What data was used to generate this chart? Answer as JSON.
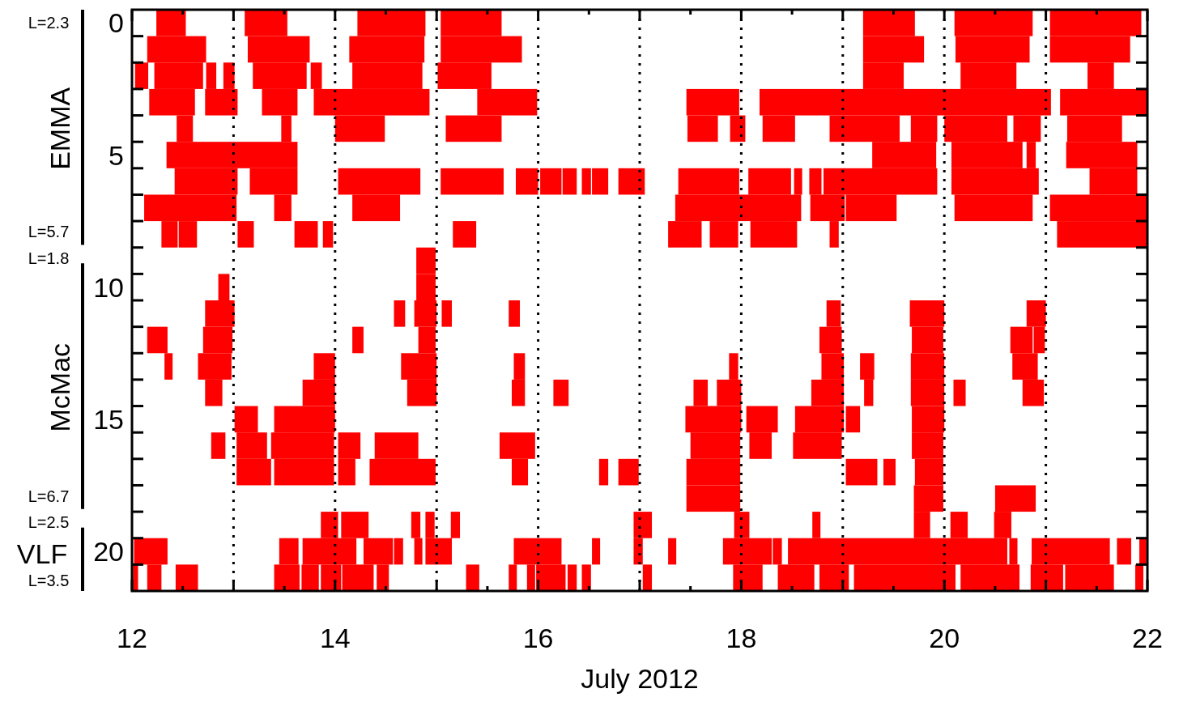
{
  "chart_data": {
    "type": "bar",
    "orientation": "horizontal",
    "xlabel": "July 2012",
    "categories": [
      "0",
      null,
      null,
      null,
      null,
      "5",
      null,
      null,
      null,
      null,
      "10",
      null,
      null,
      null,
      null,
      "15",
      null,
      null,
      null,
      null,
      "20",
      null
    ],
    "xlim": [
      12,
      22
    ],
    "xticks": [
      12,
      {
        "value": 12.5,
        "label": null
      },
      {
        "value": 13,
        "label": null
      },
      {
        "value": 13.5,
        "label": null
      },
      14,
      {
        "value": 14.5,
        "label": null
      },
      {
        "value": 15,
        "label": null
      },
      {
        "value": 15.5,
        "label": null
      },
      16,
      {
        "value": 16.5,
        "label": null
      },
      {
        "value": 17,
        "label": null
      },
      {
        "value": 17.5,
        "label": null
      },
      18,
      {
        "value": 18.5,
        "label": null
      },
      {
        "value": 19,
        "label": null
      },
      {
        "value": 19.5,
        "label": null
      },
      20,
      {
        "value": 20.5,
        "label": null
      },
      {
        "value": 21,
        "label": null
      },
      {
        "value": 21.5,
        "label": null
      },
      22
    ],
    "ref_lines": [
      {
        "axis": "x",
        "value": 13,
        "line_style": "dotted",
        "color": "#000000"
      },
      {
        "axis": "x",
        "value": 14,
        "line_style": "dotted",
        "color": "#000000"
      },
      {
        "axis": "x",
        "value": 15,
        "line_style": "dotted",
        "color": "#000000"
      },
      {
        "axis": "x",
        "value": 16,
        "line_style": "dotted",
        "color": "#000000"
      },
      {
        "axis": "x",
        "value": 17,
        "line_style": "dotted",
        "color": "#000000"
      },
      {
        "axis": "x",
        "value": 18,
        "line_style": "dotted",
        "color": "#000000"
      },
      {
        "axis": "x",
        "value": 19,
        "line_style": "dotted",
        "color": "#000000"
      },
      {
        "axis": "x",
        "value": 20,
        "line_style": "dotted",
        "color": "#000000"
      },
      {
        "axis": "x",
        "value": 21,
        "line_style": "dotted",
        "color": "#000000"
      }
    ],
    "annotations": [
      "L=2.3",
      "EMMA",
      "L=5.7",
      "L=1.8",
      "McMac",
      "L=6.7",
      "L=2.5",
      "VLF",
      "L=3.5"
    ],
    "series": [
      {
        "color": "#ff0000",
        "base": [
          12.24,
          12.15,
          12.03,
          12.17,
          12.44,
          12.34,
          12.42,
          12.12,
          12.29,
          14.8,
          12.85,
          12.72,
          12.15,
          12.32,
          12.72,
          13.01,
          12.78,
          13.03,
          17.46,
          13.86,
          12.02,
          12.01
        ],
        "values": [
          0.29,
          0.58,
          0.13,
          0.45,
          0.16,
          1.29,
          0.62,
          0.91,
          0.16,
          0.19,
          0.11,
          0.29,
          0.2,
          0.08,
          0.17,
          0.23,
          0.14,
          0.34,
          0.53,
          0.17,
          0.33,
          0.05
        ]
      },
      {
        "color": "#ff0000",
        "base": [
          13.11,
          13.14,
          12.22,
          12.72,
          13.47,
          19.29,
          13.16,
          13.4,
          12.46,
          null,
          14.8,
          14.58,
          12.7,
          12.65,
          13.68,
          13.4,
          13.03,
          13.4,
          19.7,
          14.06,
          13.45,
          12.15
        ],
        "values": [
          0.42,
          0.61,
          0.48,
          0.32,
          0.1,
          0.63,
          0.47,
          0.17,
          0.18,
          null,
          0.19,
          0.11,
          0.29,
          0.33,
          0.32,
          0.6,
          0.3,
          0.59,
          0.29,
          0.27,
          0.19,
          0.14
        ]
      },
      {
        "color": "#ff0000",
        "base": [
          14.22,
          14.14,
          12.73,
          13.28,
          14.0,
          20.07,
          14.03,
          14.17,
          13.04,
          null,
          null,
          14.78,
          14.17,
          13.79,
          14.71,
          17.45,
          13.37,
          14.03,
          20.5,
          14.75,
          13.68,
          12.43
        ],
        "values": [
          0.67,
          0.74,
          0.1,
          0.35,
          0.49,
          0.7,
          0.81,
          0.47,
          0.16,
          null,
          null,
          0.22,
          0.11,
          0.21,
          0.29,
          0.55,
          0.62,
          0.17,
          0.4,
          0.09,
          0.53,
          0.22
        ]
      },
      {
        "color": "#ff0000",
        "base": [
          15.04,
          15.04,
          12.9,
          13.79,
          15.09,
          20.81,
          15.04,
          17.35,
          13.6,
          null,
          null,
          15.05,
          14.82,
          14.65,
          15.74,
          18.05,
          14.03,
          14.34,
          null,
          14.89,
          14.28,
          13.4
        ],
        "values": [
          0.6,
          0.8,
          0.11,
          1.14,
          0.55,
          0.09,
          0.62,
          1.24,
          0.23,
          null,
          null,
          0.1,
          0.17,
          0.35,
          0.13,
          0.31,
          0.22,
          0.65,
          null,
          0.09,
          0.29,
          0.25
        ]
      },
      {
        "color": "#ff0000",
        "base": [
          19.2,
          19.2,
          13.19,
          15.4,
          17.47,
          21.2,
          15.78,
          18.68,
          13.88,
          null,
          null,
          15.71,
          18.77,
          15.76,
          16.15,
          18.53,
          14.39,
          15.74,
          null,
          15.14,
          14.58,
          13.67
        ],
        "values": [
          0.51,
          0.6,
          0.53,
          0.59,
          0.3,
          0.7,
          0.22,
          0.34,
          0.1,
          null,
          null,
          0.11,
          0.22,
          0.11,
          0.15,
          0.48,
          0.43,
          0.16,
          null,
          0.09,
          0.09,
          0.17
        ]
      },
      {
        "color": "#ff0000",
        "base": [
          20.1,
          20.11,
          13.76,
          17.46,
          17.89,
          null,
          16.02,
          19.03,
          15.16,
          null,
          null,
          18.84,
          19.68,
          17.88,
          17.53,
          19.03,
          15.62,
          16.6,
          null,
          16.94,
          14.78,
          13.86
        ],
        "values": [
          0.77,
          0.73,
          0.11,
          0.52,
          0.15,
          null,
          0.21,
          0.5,
          0.23,
          null,
          null,
          0.14,
          0.31,
          0.09,
          0.14,
          0.14,
          0.35,
          0.09,
          null,
          0.18,
          0.08,
          0.2
        ]
      },
      {
        "color": "#ff0000",
        "base": [
          21.04,
          21.04,
          14.17,
          18.18,
          18.21,
          null,
          16.24,
          20.1,
          17.28,
          null,
          null,
          19.66,
          20.65,
          18.79,
          17.76,
          19.68,
          17.5,
          16.79,
          null,
          17.93,
          14.89,
          14.07
        ],
        "values": [
          0.9,
          0.79,
          0.69,
          2.87,
          0.32,
          null,
          0.14,
          0.77,
          0.33,
          null,
          null,
          0.34,
          0.22,
          0.22,
          0.24,
          0.32,
          0.49,
          0.2,
          null,
          0.15,
          0.26,
          0.31
        ]
      },
      {
        "color": "#ff0000",
        "base": [
          null,
          null,
          15.01,
          21.14,
          18.87,
          null,
          16.43,
          21.04,
          17.69,
          null,
          null,
          20.81,
          20.88,
          19.17,
          18.69,
          null,
          18.08,
          17.46,
          null,
          18.7,
          15.76,
          14.41
        ],
        "values": [
          null,
          null,
          0.53,
          0.86,
          0.69,
          null,
          0.09,
          0.96,
          0.28,
          null,
          null,
          0.19,
          0.11,
          0.14,
          0.32,
          null,
          0.22,
          0.53,
          null,
          0.08,
          0.47,
          0.12
        ]
      },
      {
        "color": "#ff0000",
        "base": [
          null,
          null,
          19.2,
          null,
          19.67,
          null,
          16.53,
          null,
          18.09,
          null,
          null,
          null,
          null,
          19.67,
          19.21,
          null,
          18.51,
          19.03,
          null,
          19.7,
          16.53,
          15.29
        ],
        "values": [
          null,
          null,
          0.4,
          null,
          0.26,
          null,
          0.16,
          null,
          0.46,
          null,
          null,
          null,
          null,
          0.33,
          0.09,
          null,
          0.48,
          0.31,
          null,
          0.16,
          0.08,
          0.13
        ]
      },
      {
        "color": "#ff0000",
        "base": [
          null,
          null,
          20.16,
          null,
          20.0,
          null,
          16.79,
          null,
          18.87,
          null,
          null,
          null,
          null,
          20.67,
          19.67,
          null,
          19.68,
          19.4,
          null,
          20.06,
          16.94,
          15.71
        ],
        "values": [
          null,
          null,
          0.55,
          null,
          0.62,
          null,
          0.26,
          null,
          0.09,
          null,
          null,
          null,
          null,
          0.25,
          0.33,
          null,
          0.31,
          0.12,
          null,
          0.17,
          0.09,
          0.08
        ]
      },
      {
        "color": "#ff0000",
        "base": [
          null,
          null,
          21.41,
          null,
          20.68,
          null,
          17.38,
          null,
          21.11,
          null,
          null,
          null,
          null,
          null,
          20.09,
          null,
          null,
          19.71,
          null,
          20.49,
          17.28,
          15.89
        ],
        "values": [
          null,
          null,
          0.26,
          null,
          0.27,
          null,
          0.6,
          null,
          0.89,
          null,
          null,
          null,
          null,
          null,
          0.12,
          null,
          null,
          0.28,
          null,
          0.17,
          0.08,
          0.08
        ]
      },
      {
        "color": "#ff0000",
        "base": [
          null,
          null,
          null,
          null,
          21.21,
          null,
          18.07,
          null,
          null,
          null,
          null,
          null,
          null,
          null,
          20.77,
          null,
          null,
          null,
          null,
          null,
          17.82,
          15.98
        ],
        "values": [
          null,
          null,
          null,
          null,
          0.54,
          null,
          0.42,
          null,
          null,
          null,
          null,
          null,
          null,
          null,
          0.21,
          null,
          null,
          null,
          null,
          null,
          0.48,
          0.29
        ]
      },
      {
        "color": "#ff0000",
        "base": [
          null,
          null,
          null,
          null,
          null,
          null,
          18.52,
          null,
          null,
          null,
          null,
          null,
          null,
          null,
          null,
          null,
          null,
          null,
          null,
          null,
          18.31,
          16.29
        ],
        "values": [
          null,
          null,
          null,
          null,
          null,
          null,
          0.08,
          null,
          null,
          null,
          null,
          null,
          null,
          null,
          null,
          null,
          null,
          null,
          null,
          null,
          0.09,
          0.09
        ]
      },
      {
        "color": "#ff0000",
        "base": [
          null,
          null,
          null,
          null,
          null,
          null,
          18.67,
          null,
          null,
          null,
          null,
          null,
          null,
          null,
          null,
          null,
          null,
          null,
          null,
          null,
          18.46,
          16.43
        ],
        "values": [
          null,
          null,
          null,
          null,
          null,
          null,
          0.12,
          null,
          null,
          null,
          null,
          null,
          null,
          null,
          null,
          null,
          null,
          null,
          null,
          null,
          2.16,
          0.09
        ]
      },
      {
        "color": "#ff0000",
        "base": [
          null,
          null,
          null,
          null,
          null,
          null,
          18.81,
          null,
          null,
          null,
          null,
          null,
          null,
          null,
          null,
          null,
          null,
          null,
          null,
          null,
          20.64,
          17.03
        ],
        "values": [
          null,
          null,
          null,
          null,
          null,
          null,
          1.12,
          null,
          null,
          null,
          null,
          null,
          null,
          null,
          null,
          null,
          null,
          null,
          null,
          null,
          0.08,
          0.09
        ]
      },
      {
        "color": "#ff0000",
        "base": [
          null,
          null,
          null,
          null,
          null,
          null,
          20.07,
          null,
          null,
          null,
          null,
          null,
          null,
          null,
          null,
          null,
          null,
          null,
          null,
          null,
          20.86,
          17.92
        ],
        "values": [
          null,
          null,
          null,
          null,
          null,
          null,
          0.86,
          null,
          null,
          null,
          null,
          null,
          null,
          null,
          null,
          null,
          null,
          null,
          null,
          null,
          0.77,
          0.29
        ]
      },
      {
        "color": "#ff0000",
        "base": [
          null,
          null,
          null,
          null,
          null,
          null,
          21.43,
          null,
          null,
          null,
          null,
          null,
          null,
          null,
          null,
          null,
          null,
          null,
          null,
          null,
          21.7,
          18.36
        ],
        "values": [
          null,
          null,
          null,
          null,
          null,
          null,
          0.47,
          null,
          null,
          null,
          null,
          null,
          null,
          null,
          null,
          null,
          null,
          null,
          null,
          null,
          0.14,
          0.36
        ]
      },
      {
        "color": "#ff0000",
        "base": [
          null,
          null,
          null,
          null,
          null,
          null,
          null,
          null,
          null,
          null,
          null,
          null,
          null,
          null,
          null,
          null,
          null,
          null,
          null,
          null,
          21.92,
          18.77
        ],
        "values": [
          null,
          null,
          null,
          null,
          null,
          null,
          null,
          null,
          null,
          null,
          null,
          null,
          null,
          null,
          null,
          null,
          null,
          null,
          null,
          null,
          0.07,
          0.29
        ]
      },
      {
        "color": "#ff0000",
        "base": [
          null,
          null,
          null,
          null,
          null,
          null,
          null,
          null,
          null,
          null,
          null,
          null,
          null,
          null,
          null,
          null,
          null,
          null,
          null,
          null,
          null,
          19.11
        ],
        "values": [
          null,
          null,
          null,
          null,
          null,
          null,
          null,
          null,
          null,
          null,
          null,
          null,
          null,
          null,
          null,
          null,
          null,
          null,
          null,
          null,
          null,
          1.0
        ]
      },
      {
        "color": "#ff0000",
        "base": [
          null,
          null,
          null,
          null,
          null,
          null,
          null,
          null,
          null,
          null,
          null,
          null,
          null,
          null,
          null,
          null,
          null,
          null,
          null,
          null,
          null,
          20.16
        ],
        "values": [
          null,
          null,
          null,
          null,
          null,
          null,
          null,
          null,
          null,
          null,
          null,
          null,
          null,
          null,
          null,
          null,
          null,
          null,
          null,
          null,
          null,
          0.58
        ]
      },
      {
        "color": "#ff0000",
        "base": [
          null,
          null,
          null,
          null,
          null,
          null,
          null,
          null,
          null,
          null,
          null,
          null,
          null,
          null,
          null,
          null,
          null,
          null,
          null,
          null,
          null,
          20.85
        ],
        "values": [
          null,
          null,
          null,
          null,
          null,
          null,
          null,
          null,
          null,
          null,
          null,
          null,
          null,
          null,
          null,
          null,
          null,
          null,
          null,
          null,
          null,
          0.32
        ]
      },
      {
        "color": "#ff0000",
        "base": [
          null,
          null,
          null,
          null,
          null,
          null,
          null,
          null,
          null,
          null,
          null,
          null,
          null,
          null,
          null,
          null,
          null,
          null,
          null,
          null,
          null,
          21.19
        ],
        "values": [
          null,
          null,
          null,
          null,
          null,
          null,
          null,
          null,
          null,
          null,
          null,
          null,
          null,
          null,
          null,
          null,
          null,
          null,
          null,
          null,
          null,
          0.48
        ]
      },
      {
        "color": "#ff0000",
        "base": [
          null,
          null,
          null,
          null,
          null,
          null,
          null,
          null,
          null,
          null,
          null,
          null,
          null,
          null,
          null,
          null,
          null,
          null,
          null,
          null,
          null,
          21.88
        ],
        "values": [
          null,
          null,
          null,
          null,
          null,
          null,
          null,
          null,
          null,
          null,
          null,
          null,
          null,
          null,
          null,
          null,
          null,
          null,
          null,
          null,
          null,
          0.08
        ]
      }
    ]
  }
}
